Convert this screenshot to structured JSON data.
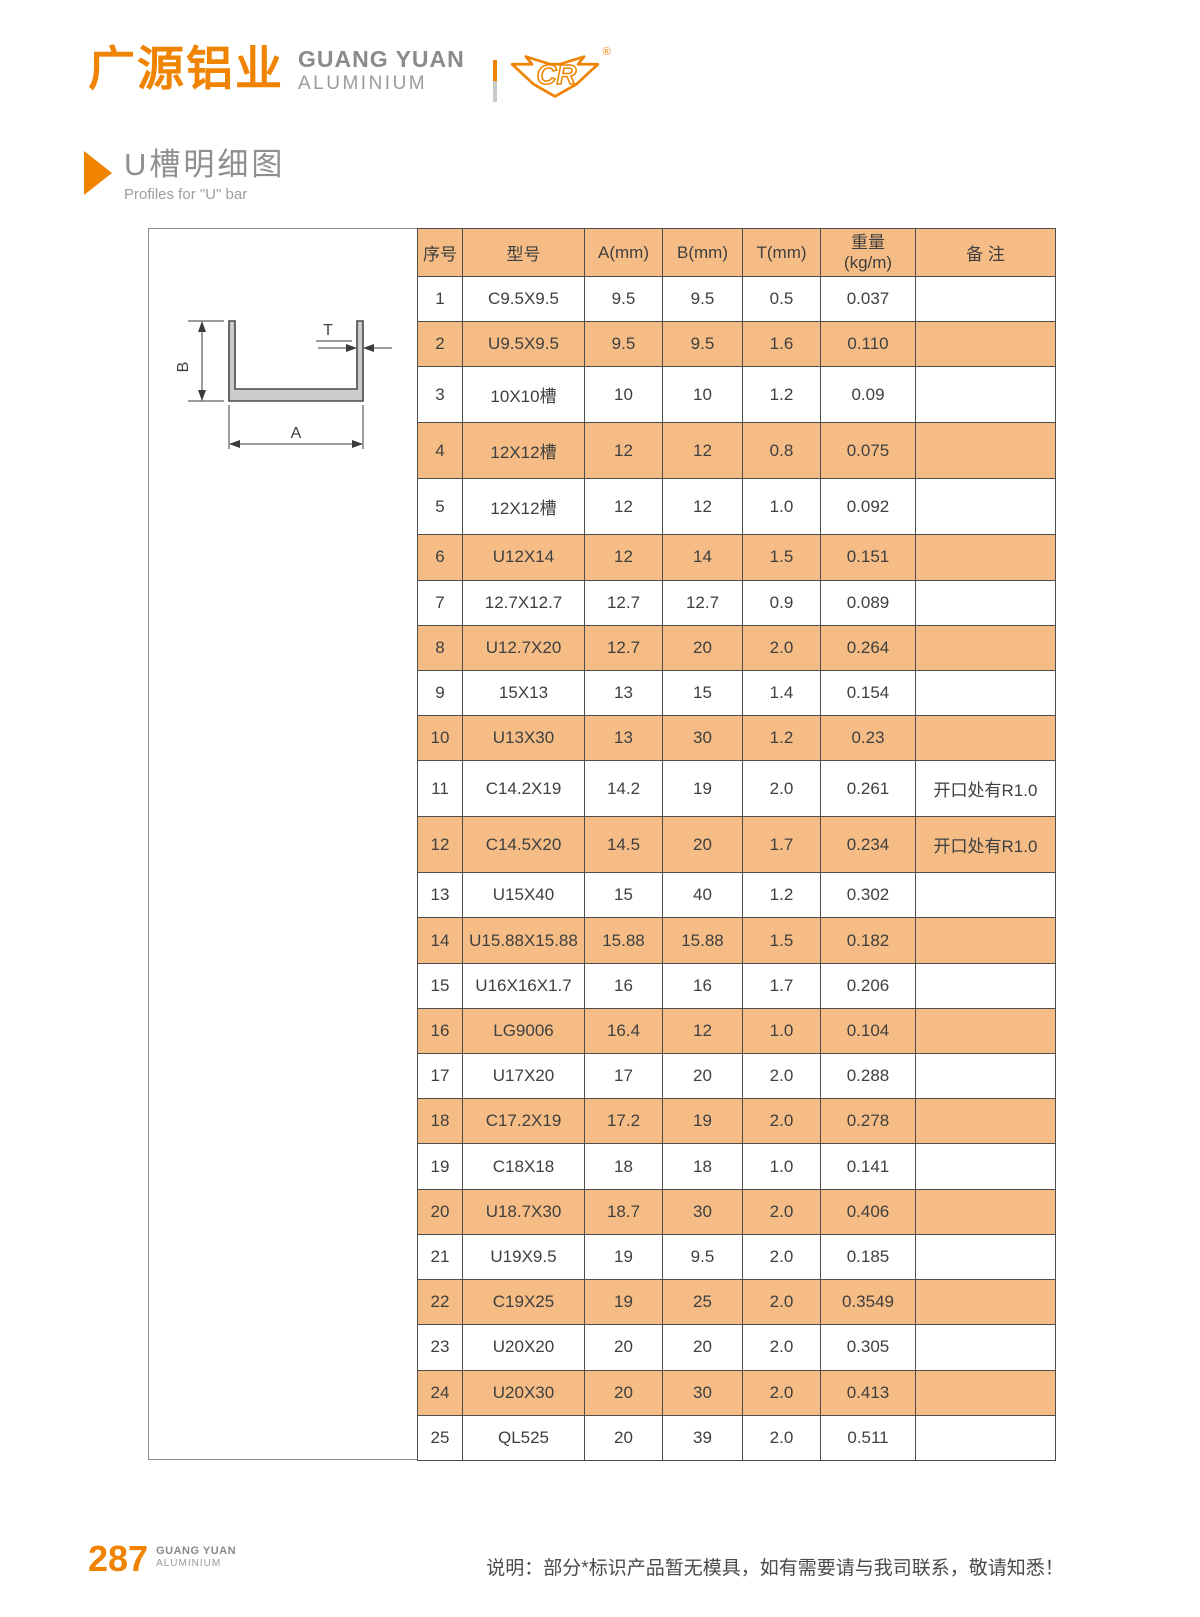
{
  "colors": {
    "accent_orange": "#f08300",
    "table_stripe_orange": "#f5bd85",
    "table_border": "#4d4d4d",
    "box_border": "#8f8f8f",
    "text_gray": "#3f3f3f"
  },
  "brand": {
    "cn": "广源铝业",
    "en_top": "GUANG YUAN",
    "en_bottom": "ALUMINIUM",
    "logo_letters": "CR",
    "reg": "®"
  },
  "section": {
    "title": "U槽明细图",
    "subtitle": "Profiles for \"U\" bar"
  },
  "diagram": {
    "label_a": "A",
    "label_b": "B",
    "label_t": "T"
  },
  "table": {
    "headers": {
      "no": "序号",
      "model": "型号",
      "a": "A(mm)",
      "b": "B(mm)",
      "t": "T(mm)",
      "weight_line1": "重量",
      "weight_line2": "(kg/m)",
      "note": "备 注"
    },
    "rows": [
      {
        "no": 1,
        "model": "C9.5X9.5",
        "a": "9.5",
        "b": "9.5",
        "t": "0.5",
        "weight": "0.037",
        "note": ""
      },
      {
        "no": 2,
        "model": "U9.5X9.5",
        "a": "9.5",
        "b": "9.5",
        "t": "1.6",
        "weight": "0.110",
        "note": ""
      },
      {
        "no": 3,
        "model": "10X10槽",
        "a": "10",
        "b": "10",
        "t": "1.2",
        "weight": "0.09",
        "note": ""
      },
      {
        "no": 4,
        "model": "12X12槽",
        "a": "12",
        "b": "12",
        "t": "0.8",
        "weight": "0.075",
        "note": ""
      },
      {
        "no": 5,
        "model": "12X12槽",
        "a": "12",
        "b": "12",
        "t": "1.0",
        "weight": "0.092",
        "note": ""
      },
      {
        "no": 6,
        "model": "U12X14",
        "a": "12",
        "b": "14",
        "t": "1.5",
        "weight": "0.151",
        "note": ""
      },
      {
        "no": 7,
        "model": "12.7X12.7",
        "a": "12.7",
        "b": "12.7",
        "t": "0.9",
        "weight": "0.089",
        "note": ""
      },
      {
        "no": 8,
        "model": "U12.7X20",
        "a": "12.7",
        "b": "20",
        "t": "2.0",
        "weight": "0.264",
        "note": ""
      },
      {
        "no": 9,
        "model": "15X13",
        "a": "13",
        "b": "15",
        "t": "1.4",
        "weight": "0.154",
        "note": ""
      },
      {
        "no": 10,
        "model": "U13X30",
        "a": "13",
        "b": "30",
        "t": "1.2",
        "weight": "0.23",
        "note": ""
      },
      {
        "no": 11,
        "model": "C14.2X19",
        "a": "14.2",
        "b": "19",
        "t": "2.0",
        "weight": "0.261",
        "note": "开口处有R1.0"
      },
      {
        "no": 12,
        "model": "C14.5X20",
        "a": "14.5",
        "b": "20",
        "t": "1.7",
        "weight": "0.234",
        "note": "开口处有R1.0"
      },
      {
        "no": 13,
        "model": "U15X40",
        "a": "15",
        "b": "40",
        "t": "1.2",
        "weight": "0.302",
        "note": ""
      },
      {
        "no": 14,
        "model": "U15.88X15.88",
        "a": "15.88",
        "b": "15.88",
        "t": "1.5",
        "weight": "0.182",
        "note": ""
      },
      {
        "no": 15,
        "model": "U16X16X1.7",
        "a": "16",
        "b": "16",
        "t": "1.7",
        "weight": "0.206",
        "note": ""
      },
      {
        "no": 16,
        "model": "LG9006",
        "a": "16.4",
        "b": "12",
        "t": "1.0",
        "weight": "0.104",
        "note": ""
      },
      {
        "no": 17,
        "model": "U17X20",
        "a": "17",
        "b": "20",
        "t": "2.0",
        "weight": "0.288",
        "note": ""
      },
      {
        "no": 18,
        "model": "C17.2X19",
        "a": "17.2",
        "b": "19",
        "t": "2.0",
        "weight": "0.278",
        "note": ""
      },
      {
        "no": 19,
        "model": "C18X18",
        "a": "18",
        "b": "18",
        "t": "1.0",
        "weight": "0.141",
        "note": ""
      },
      {
        "no": 20,
        "model": "U18.7X30",
        "a": "18.7",
        "b": "30",
        "t": "2.0",
        "weight": "0.406",
        "note": ""
      },
      {
        "no": 21,
        "model": "U19X9.5",
        "a": "19",
        "b": "9.5",
        "t": "2.0",
        "weight": "0.185",
        "note": ""
      },
      {
        "no": 22,
        "model": "C19X25",
        "a": "19",
        "b": "25",
        "t": "2.0",
        "weight": "0.3549",
        "note": ""
      },
      {
        "no": 23,
        "model": "U20X20",
        "a": "20",
        "b": "20",
        "t": "2.0",
        "weight": "0.305",
        "note": ""
      },
      {
        "no": 24,
        "model": "U20X30",
        "a": "20",
        "b": "30",
        "t": "2.0",
        "weight": "0.413",
        "note": ""
      },
      {
        "no": 25,
        "model": "QL525",
        "a": "20",
        "b": "39",
        "t": "2.0",
        "weight": "0.511",
        "note": ""
      }
    ]
  },
  "footer": {
    "page_number": "287",
    "brand_top": "GUANG YUAN",
    "brand_bottom": "ALUMINIUM",
    "note": "说明：部分*标识产品暂无模具，如有需要请与我司联系，敬请知悉！"
  }
}
